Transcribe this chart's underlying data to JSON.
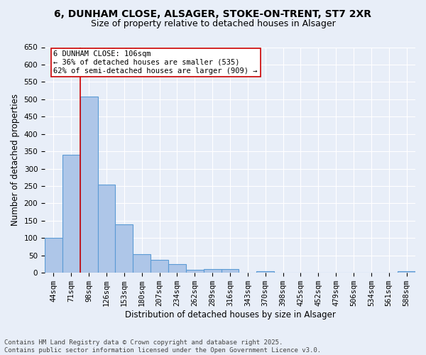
{
  "title_line1": "6, DUNHAM CLOSE, ALSAGER, STOKE-ON-TRENT, ST7 2XR",
  "title_line2": "Size of property relative to detached houses in Alsager",
  "xlabel": "Distribution of detached houses by size in Alsager",
  "ylabel": "Number of detached properties",
  "categories": [
    "44sqm",
    "71sqm",
    "98sqm",
    "126sqm",
    "153sqm",
    "180sqm",
    "207sqm",
    "234sqm",
    "262sqm",
    "289sqm",
    "316sqm",
    "343sqm",
    "370sqm",
    "398sqm",
    "425sqm",
    "452sqm",
    "479sqm",
    "506sqm",
    "534sqm",
    "561sqm",
    "588sqm"
  ],
  "values": [
    100,
    340,
    507,
    255,
    140,
    53,
    37,
    24,
    8,
    10,
    10,
    0,
    5,
    0,
    0,
    0,
    0,
    0,
    0,
    0,
    5
  ],
  "bar_color": "#aec6e8",
  "bar_edge_color": "#5b9bd5",
  "vline_index": 2,
  "annotation_text": "6 DUNHAM CLOSE: 106sqm\n← 36% of detached houses are smaller (535)\n62% of semi-detached houses are larger (909) →",
  "annotation_box_color": "#ffffff",
  "annotation_box_edge_color": "#cc0000",
  "vline_color": "#cc0000",
  "ylim": [
    0,
    650
  ],
  "yticks": [
    0,
    50,
    100,
    150,
    200,
    250,
    300,
    350,
    400,
    450,
    500,
    550,
    600,
    650
  ],
  "background_color": "#e8eef8",
  "footnote": "Contains HM Land Registry data © Crown copyright and database right 2025.\nContains public sector information licensed under the Open Government Licence v3.0.",
  "title_fontsize": 10,
  "subtitle_fontsize": 9,
  "axis_label_fontsize": 8.5,
  "tick_fontsize": 7.5,
  "annotation_fontsize": 7.5,
  "footnote_fontsize": 6.5
}
